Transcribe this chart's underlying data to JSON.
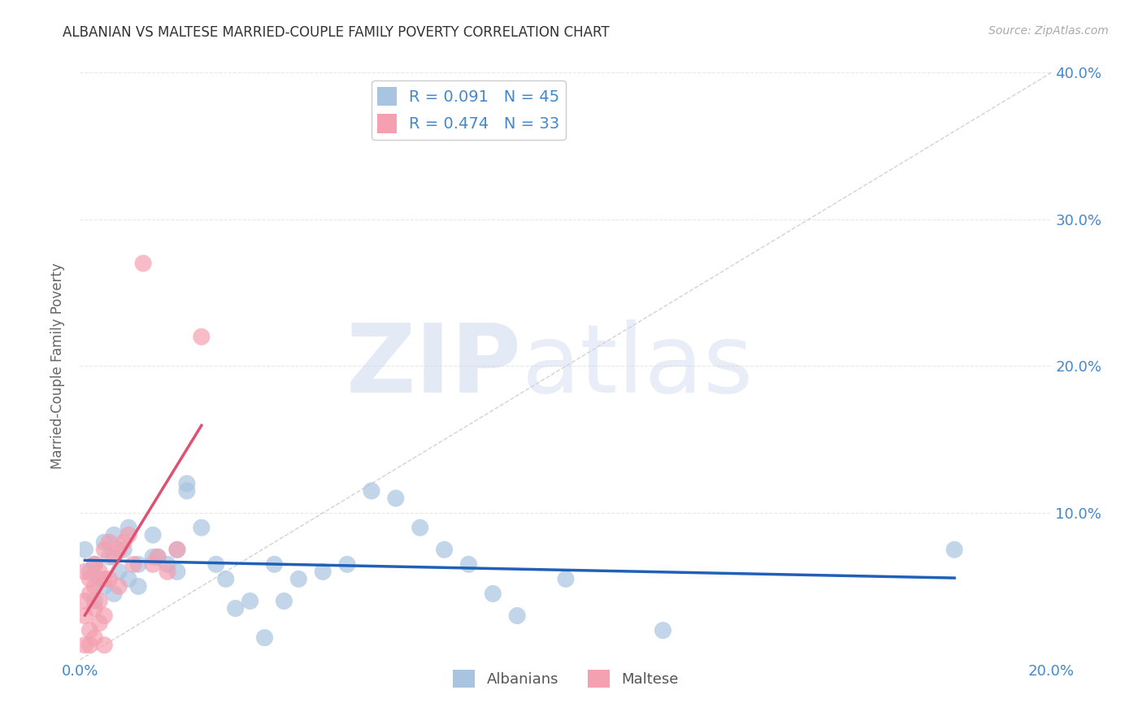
{
  "title": "ALBANIAN VS MALTESE MARRIED-COUPLE FAMILY POVERTY CORRELATION CHART",
  "source": "Source: ZipAtlas.com",
  "ylabel_label": "Married-Couple Family Poverty",
  "xlim": [
    0.0,
    0.2
  ],
  "ylim": [
    0.0,
    0.4
  ],
  "albanian_R": 0.091,
  "albanian_N": 45,
  "maltese_R": 0.474,
  "maltese_N": 33,
  "albanian_color": "#a8c4e0",
  "maltese_color": "#f4a0b0",
  "albanian_line_color": "#2060b8",
  "maltese_line_color": "#e05070",
  "reference_line_color": "#c0c0c0",
  "watermark_color": "#ccd8ee",
  "legend_albanians": "Albanians",
  "legend_maltese": "Maltese",
  "background_color": "#ffffff",
  "grid_color": "#e8e8e8",
  "albanian_scatter_x": [
    0.001,
    0.002,
    0.003,
    0.003,
    0.004,
    0.005,
    0.005,
    0.006,
    0.007,
    0.007,
    0.008,
    0.009,
    0.01,
    0.01,
    0.012,
    0.012,
    0.015,
    0.015,
    0.016,
    0.018,
    0.02,
    0.02,
    0.022,
    0.022,
    0.025,
    0.028,
    0.03,
    0.032,
    0.035,
    0.038,
    0.04,
    0.042,
    0.045,
    0.05,
    0.055,
    0.06,
    0.065,
    0.07,
    0.075,
    0.08,
    0.085,
    0.09,
    0.1,
    0.12,
    0.18
  ],
  "albanian_scatter_y": [
    0.075,
    0.06,
    0.04,
    0.065,
    0.055,
    0.08,
    0.05,
    0.07,
    0.085,
    0.045,
    0.06,
    0.075,
    0.09,
    0.055,
    0.065,
    0.05,
    0.07,
    0.085,
    0.07,
    0.065,
    0.06,
    0.075,
    0.12,
    0.115,
    0.09,
    0.065,
    0.055,
    0.035,
    0.04,
    0.015,
    0.065,
    0.04,
    0.055,
    0.06,
    0.065,
    0.115,
    0.11,
    0.09,
    0.075,
    0.065,
    0.045,
    0.03,
    0.055,
    0.02,
    0.075
  ],
  "maltese_scatter_x": [
    0.001,
    0.001,
    0.001,
    0.001,
    0.002,
    0.002,
    0.002,
    0.002,
    0.003,
    0.003,
    0.003,
    0.003,
    0.004,
    0.004,
    0.004,
    0.005,
    0.005,
    0.005,
    0.005,
    0.006,
    0.006,
    0.007,
    0.008,
    0.008,
    0.009,
    0.01,
    0.011,
    0.013,
    0.015,
    0.016,
    0.018,
    0.02,
    0.025
  ],
  "maltese_scatter_y": [
    0.06,
    0.04,
    0.03,
    0.01,
    0.055,
    0.045,
    0.02,
    0.01,
    0.065,
    0.05,
    0.035,
    0.015,
    0.06,
    0.04,
    0.025,
    0.075,
    0.055,
    0.03,
    0.01,
    0.08,
    0.055,
    0.07,
    0.075,
    0.05,
    0.08,
    0.085,
    0.065,
    0.27,
    0.065,
    0.07,
    0.06,
    0.075,
    0.22
  ]
}
